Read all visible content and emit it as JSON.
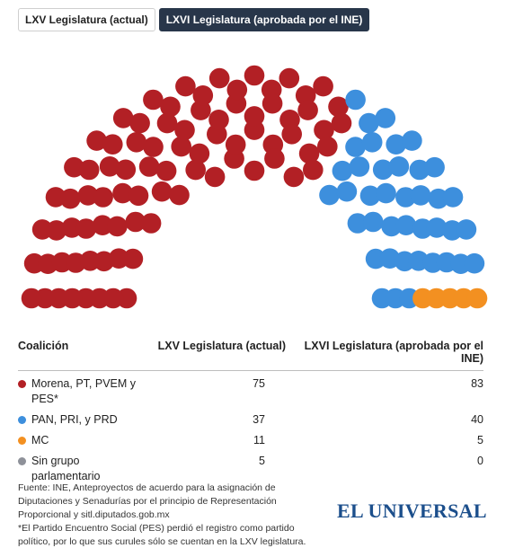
{
  "tabs": [
    {
      "label": "LXV Legislatura (actual)",
      "active": false
    },
    {
      "label": "LXVI Legislatura (aprobada por el INE)",
      "active": true
    }
  ],
  "chart_data": {
    "type": "parliament",
    "shown": "LXVI Legislatura (aprobada por el INE)",
    "series": [
      {
        "name": "Morena, PT, PVEM y PES*",
        "color": "#b22025",
        "values": {
          "LXV": 75,
          "LXVI": 83
        }
      },
      {
        "name": "PAN, PRI, y PRD",
        "color": "#3d8fdd",
        "values": {
          "LXV": 37,
          "LXVI": 40
        }
      },
      {
        "name": "MC",
        "color": "#f39021",
        "values": {
          "LXV": 11,
          "LXVI": 5
        }
      },
      {
        "name": "Sin grupo parlamentario",
        "color": "#8e9199",
        "values": {
          "LXV": 5,
          "LXVI": 0
        }
      }
    ],
    "rows": 8
  },
  "table": {
    "headers": [
      "Coalición",
      "LXV Legislatura (actual)",
      "LXVI Legislatura (aprobada por el INE)"
    ],
    "rows": [
      {
        "label": "Morena, PT, PVEM y PES*",
        "color": "#b22025",
        "lxv": "75",
        "lxvi": "83"
      },
      {
        "label": "PAN, PRI, y PRD",
        "color": "#3d8fdd",
        "lxv": "37",
        "lxvi": "40"
      },
      {
        "label": "MC",
        "color": "#f39021",
        "lxv": "11",
        "lxvi": "5"
      },
      {
        "label": "Sin grupo parlamentario",
        "color": "#8e9199",
        "lxv": "5",
        "lxvi": "0"
      }
    ]
  },
  "footnote": {
    "source": "Fuente: INE, Anteproyectos de acuerdo para la asignación de Diputaciones y Senadurías por el principio de Representación Proporcional y sitl.diputados.gob.mx",
    "note": "*El Partido Encuentro Social (PES) perdió el registro como partido político, por lo que sus curules sólo se cuentan en la LXV legislatura."
  },
  "logo": "EL UNIVERSAL"
}
